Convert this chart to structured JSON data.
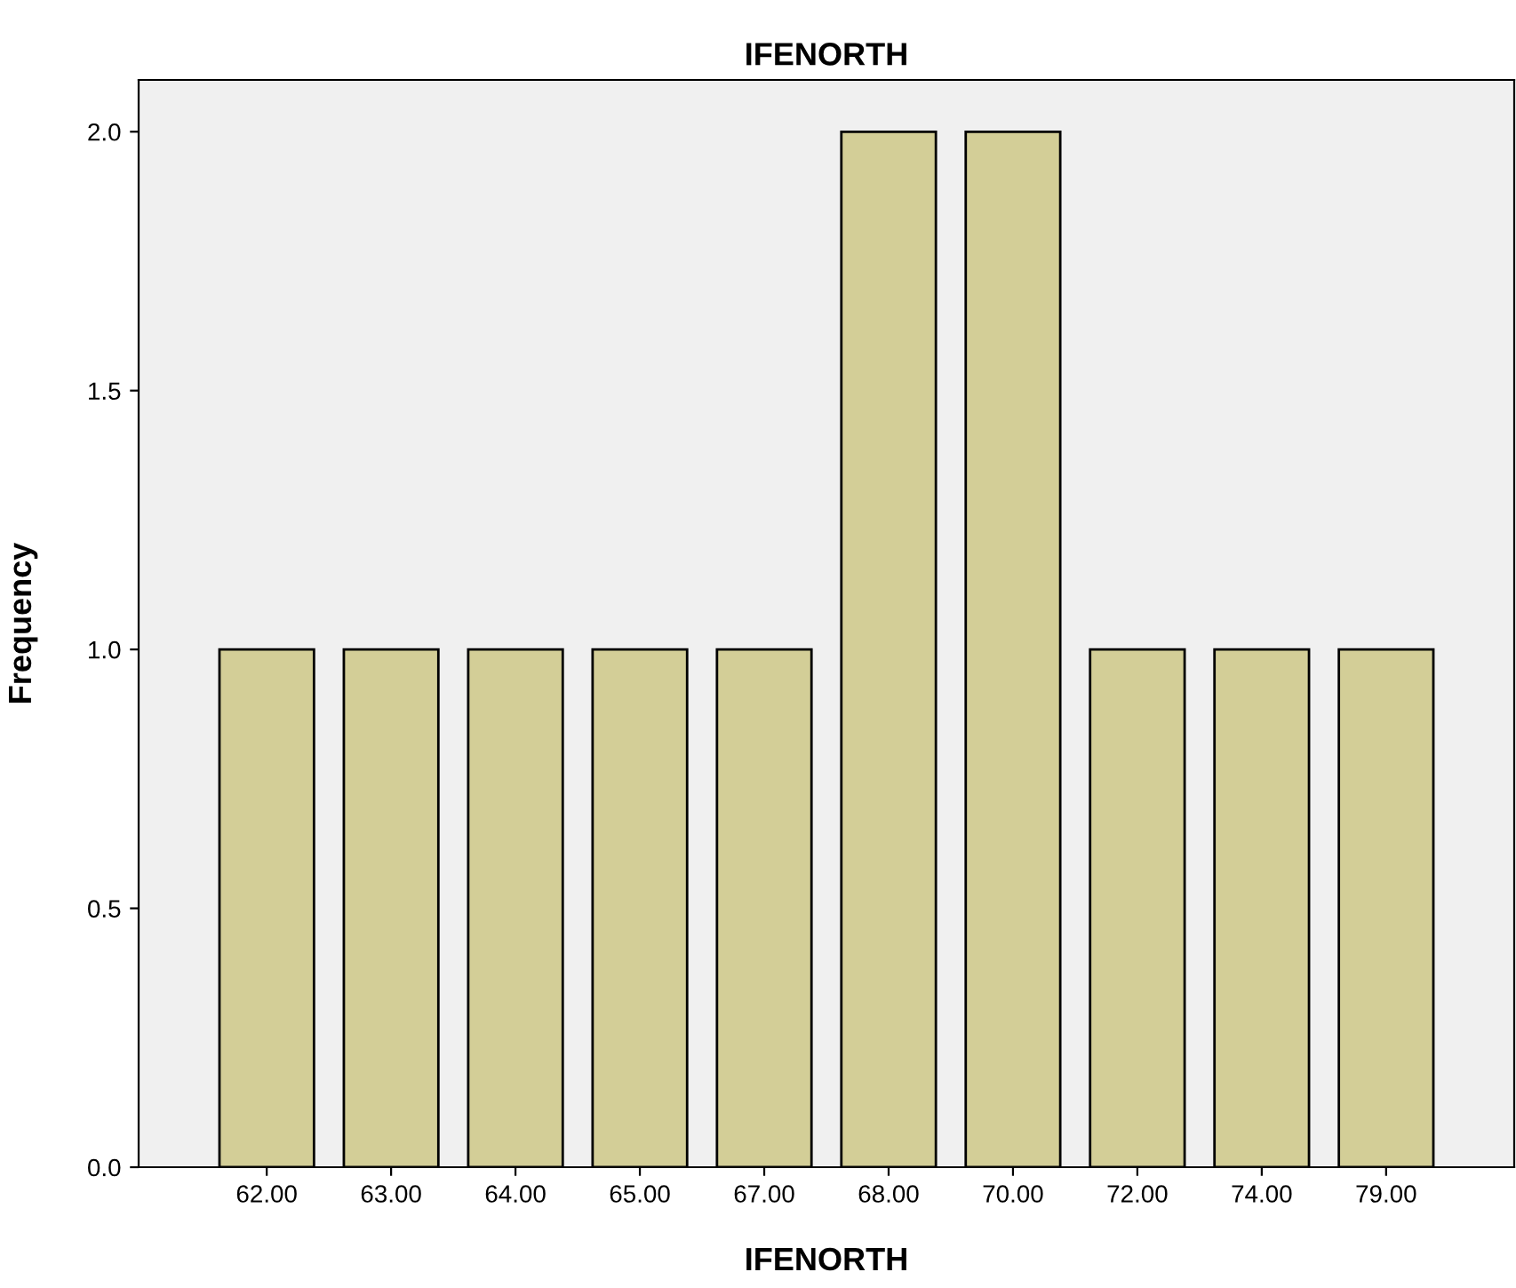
{
  "chart_data": {
    "type": "bar",
    "title": "IFENORTH",
    "xlabel": "IFENORTH",
    "ylabel": "Frequency",
    "categories": [
      "62.00",
      "63.00",
      "64.00",
      "65.00",
      "67.00",
      "68.00",
      "70.00",
      "72.00",
      "74.00",
      "79.00"
    ],
    "values": [
      1,
      1,
      1,
      1,
      1,
      2,
      2,
      1,
      1,
      1
    ],
    "color": "#d3ce97",
    "ylim": [
      0,
      2.1
    ],
    "yticks": [
      {
        "value": 0,
        "label": "0.0"
      },
      {
        "value": 0.5,
        "label": "0.5"
      },
      {
        "value": 1,
        "label": "1.0"
      },
      {
        "value": 1.5,
        "label": "1.5"
      },
      {
        "value": 2,
        "label": "2.0"
      }
    ],
    "grid": false
  }
}
